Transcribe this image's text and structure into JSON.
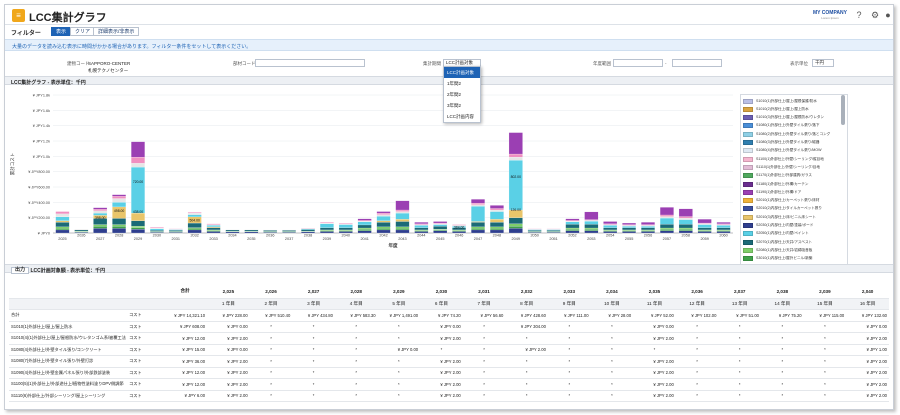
{
  "app": {
    "title": "LCC集計グラフ",
    "company": "MY COMPANY",
    "company_sub": "Lorem Ipsum"
  },
  "filter": {
    "label": "フィルター",
    "tabs": [
      "表示",
      "クリア",
      "詳細表示/非表示"
    ]
  },
  "info_message": "大量のデータを読み込む表示に時間がかかる場合があります。フィルター条件をセットして表示ください。",
  "form": {
    "building_code_label": "建物コード",
    "building_code_value": "SAPPORO-CENTER",
    "building_name_value": "札幌テクノセンター",
    "part_code_label": "部材コード",
    "period_label": "集計期間",
    "period_value": "LCC計画対象",
    "year_range_label": "年度範囲",
    "range_sep": "-",
    "unit_label": "表示単位",
    "unit_value": "千円",
    "period_options": [
      "LCC計画対象",
      "1年間2",
      "2年間2",
      "3年間2",
      "LCC計画内容"
    ]
  },
  "chart_section": {
    "title": "LCC集計グラフ - 表示単位：千円"
  },
  "table_section": {
    "title": "集計表 - LCC計画対象額 - 表示単位：千円",
    "output_button": "出力"
  },
  "colors": {
    "primary": "#1e63b5",
    "info_bg": "#e6f0fb",
    "accent": "#f0a71b"
  },
  "chart_data": {
    "type": "bar",
    "stacked": true,
    "ylabel": "累計コスト",
    "xlabel": "年度",
    "ylim": [
      0,
      1800000
    ],
    "yticks": [
      "¥ JPY0",
      "¥ JPY200.00",
      "¥ JPY400.00",
      "¥ JPY600.00",
      "¥ JPY800.00",
      "¥ JPY1.0k",
      "¥ JPY1.2k",
      "¥ JPY1.4k",
      "¥ JPY1.6k",
      "¥ JPY1.8k"
    ],
    "categories": [
      "2025",
      "2026",
      "2027",
      "2028",
      "2029",
      "2030",
      "2031",
      "2032",
      "2033",
      "2034",
      "2035",
      "2036",
      "2037",
      "2038",
      "2039",
      "2040",
      "2041",
      "2042",
      "2043",
      "2044",
      "2045",
      "2046",
      "2047",
      "2048",
      "2049",
      "2050",
      "2051",
      "2052",
      "2053",
      "2054",
      "2055",
      "2056",
      "2057",
      "2058",
      "2059",
      "2060"
    ],
    "xtick_labels": [
      "2025",
      "",
      "2027",
      "",
      "2029",
      "",
      "2031",
      "",
      "2033",
      "",
      "2035",
      "",
      "2037",
      "",
      "2039",
      "",
      "2041",
      "",
      "2043",
      "",
      "2045",
      "",
      "2047",
      "",
      "2049",
      "",
      "2051",
      "",
      "2053",
      "",
      "2055",
      "",
      "2057",
      "",
      "2059",
      ""
    ],
    "xtick_labels_b": [
      "",
      "2026",
      "",
      "2028",
      "",
      "2030",
      "",
      "2032",
      "",
      "2034",
      "",
      "2036",
      "",
      "2038",
      "",
      "2040",
      "",
      "2042",
      "",
      "2044",
      "",
      "2046",
      "",
      "2048",
      "",
      "2050",
      "",
      "2052",
      "",
      "2054",
      "",
      "2056",
      "",
      "2058",
      "",
      "2060"
    ],
    "series": [
      {
        "color": "#2f3f8f",
        "values": [
          40000,
          10000,
          60000,
          60000,
          50000,
          10000,
          10000,
          40000,
          20000,
          15000,
          15000,
          10000,
          10000,
          15000,
          20000,
          20000,
          30000,
          40000,
          40000,
          20000,
          30000,
          20000,
          40000,
          40000,
          60000,
          10000,
          10000,
          30000,
          30000,
          20000,
          20000,
          20000,
          30000,
          30000,
          20000,
          20000
        ]
      },
      {
        "color": "#3fa14a",
        "values": [
          20000,
          5000,
          30000,
          30000,
          20000,
          5000,
          5000,
          20000,
          10000,
          5000,
          5000,
          5000,
          5000,
          5000,
          10000,
          10000,
          20000,
          20000,
          20000,
          10000,
          10000,
          10000,
          20000,
          20000,
          30000,
          5000,
          5000,
          20000,
          20000,
          10000,
          10000,
          10000,
          20000,
          20000,
          10000,
          10000
        ]
      },
      {
        "color": "#7fcf6a",
        "values": [
          20000,
          10000,
          20000,
          20000,
          20000,
          5000,
          5000,
          10000,
          10000,
          5000,
          5000,
          5000,
          5000,
          5000,
          10000,
          10000,
          15000,
          20000,
          20000,
          10000,
          10000,
          10000,
          20000,
          20000,
          30000,
          5000,
          5000,
          15000,
          15000,
          10000,
          10000,
          10000,
          15000,
          15000,
          10000,
          10000
        ]
      },
      {
        "color": "#1b6a77",
        "values": [
          60000,
          15000,
          80000,
          80000,
          70000,
          15000,
          15000,
          60000,
          30000,
          15000,
          15000,
          15000,
          15000,
          20000,
          30000,
          30000,
          40000,
          60000,
          70000,
          30000,
          40000,
          30000,
          60000,
          60000,
          80000,
          15000,
          15000,
          50000,
          50000,
          30000,
          30000,
          30000,
          50000,
          50000,
          30000,
          30000
        ]
      },
      {
        "color": "#e9c56a",
        "values": [
          20000,
          0,
          40000,
          150000,
          100000,
          0,
          0,
          80000,
          10000,
          0,
          0,
          0,
          0,
          0,
          0,
          0,
          0,
          20000,
          30000,
          0,
          0,
          0,
          10000,
          40000,
          100000,
          0,
          0,
          0,
          0,
          0,
          0,
          0,
          0,
          0,
          0,
          0
        ]
      },
      {
        "color": "#5ad0e6",
        "values": [
          50000,
          0,
          30000,
          60000,
          600000,
          20000,
          10000,
          30000,
          20000,
          0,
          0,
          0,
          0,
          10000,
          50000,
          40000,
          40000,
          60000,
          80000,
          30000,
          20000,
          20000,
          200000,
          100000,
          650000,
          10000,
          10000,
          30000,
          40000,
          30000,
          20000,
          20000,
          80000,
          60000,
          40000,
          30000
        ]
      },
      {
        "color": "#e6e6e6",
        "values": [
          40000,
          10000,
          30000,
          50000,
          50000,
          10000,
          5000,
          20000,
          10000,
          5000,
          5000,
          5000,
          5000,
          5000,
          10000,
          10000,
          10000,
          20000,
          20000,
          10000,
          10000,
          10000,
          20000,
          20000,
          40000,
          5000,
          5000,
          10000,
          10000,
          10000,
          10000,
          10000,
          20000,
          20000,
          10000,
          10000
        ]
      },
      {
        "color": "#f08fc0",
        "values": [
          30000,
          0,
          20000,
          30000,
          80000,
          10000,
          5000,
          10000,
          10000,
          0,
          0,
          0,
          0,
          5000,
          10000,
          10000,
          10000,
          20000,
          20000,
          10000,
          10000,
          10000,
          20000,
          20000,
          40000,
          5000,
          5000,
          10000,
          10000,
          10000,
          10000,
          10000,
          20000,
          20000,
          10000,
          10000
        ]
      },
      {
        "color": "#9b3fb3",
        "values": [
          0,
          0,
          20000,
          20000,
          200000,
          0,
          0,
          0,
          0,
          0,
          0,
          0,
          0,
          0,
          0,
          0,
          20000,
          20000,
          120000,
          20000,
          20000,
          0,
          50000,
          40000,
          280000,
          0,
          0,
          20000,
          100000,
          30000,
          20000,
          30000,
          100000,
          100000,
          50000,
          20000
        ]
      }
    ],
    "annotations": [
      {
        "index": 2,
        "label": "398.00"
      },
      {
        "index": 3,
        "label": "498.00"
      },
      {
        "index": 4,
        "label": "720.00"
      },
      {
        "index": 4,
        "label": "438.00"
      },
      {
        "index": 7,
        "label": "504.00"
      },
      {
        "index": 21,
        "label": "384.00"
      },
      {
        "index": 24,
        "label": "802.00"
      },
      {
        "index": 24,
        "label": "126.00"
      }
    ],
    "legend": [
      {
        "label": "S1010(1)外部仕上/屋上/屋根保護/防水",
        "color": "#b9bfe6"
      },
      {
        "label": "S1010(2)外部仕上/屋上/屋上防水",
        "color": "#d9a441"
      },
      {
        "label": "S1010(3)外部仕上/屋上/屋根防水/ウレタン",
        "color": "#6b5fb3"
      },
      {
        "label": "S1080(1)外部仕上/外壁タイル張り/落下",
        "color": "#4a8fd8"
      },
      {
        "label": "S1080(2)外部仕上/外壁タイル張り/落とコング",
        "color": "#8fd0e6"
      },
      {
        "label": "S1080(3)外部仕上/外壁タイル張り/磁器",
        "color": "#2f7fb0"
      },
      {
        "label": "S1080(4)外部仕上/外壁タイル張り/MOW",
        "color": "#dfe9f3"
      },
      {
        "label": "S1100(1)外部仕上/外壁/シーリング/縦目地",
        "color": "#f5b6cf"
      },
      {
        "label": "S1110(1)外部仕上/外壁/シーリング/目地",
        "color": "#e2bcd6"
      },
      {
        "label": "S1170(1)外部仕上/外部建具/ガラス",
        "color": "#4fa95e"
      },
      {
        "label": "S1180(1)外部仕上/外構/カーテン",
        "color": "#6a2e8f"
      },
      {
        "label": "S1190(1)外部仕上/外構/ドア",
        "color": "#9b3fb3"
      },
      {
        "label": "S2010(1)内部仕上/カーペット張り/床材",
        "color": "#f0b33a"
      },
      {
        "label": "S2010(2)内部仕上/タイルカーペット張り",
        "color": "#3a4f9e"
      },
      {
        "label": "S2010(3)内部仕上/床/ビニル床シート",
        "color": "#e9c56a"
      },
      {
        "label": "S2030(1)内部仕上/内壁/塗装/ボード",
        "color": "#2f3f8f"
      },
      {
        "label": "S2050(1)内部仕上/内壁/ペイント",
        "color": "#5ad0e6"
      },
      {
        "label": "S2070(1)内部仕上/天井/アスベスト",
        "color": "#1b6a77"
      },
      {
        "label": "S2080(1)内部仕上/天井/岩綿吸音板",
        "color": "#7fcf6a"
      },
      {
        "label": "S3010(1)内部仕上/屋外ビニル/新築",
        "color": "#3fa14a"
      },
      {
        "label": "S3030(1)内部建具/木製/扉",
        "color": "#2e8f8a"
      },
      {
        "label": "S3040(1)外構/舗装/アスファルト",
        "color": "#f08fc0"
      }
    ]
  },
  "table": {
    "total_label": "合計",
    "years": [
      "2,025",
      "2,026",
      "2,027",
      "2,028",
      "2,029",
      "2,030",
      "2,031",
      "2,032",
      "2,033",
      "2,034",
      "2,035",
      "2,036",
      "2,037",
      "2,038",
      "2,039",
      "2,040"
    ],
    "year_nums": [
      "1 年目",
      "2 年目",
      "3 年目",
      "4 年目",
      "5 年目",
      "6 年目",
      "7 年目",
      "8 年目",
      "9 年目",
      "10 年目",
      "11 年目",
      "12 年目",
      "13 年目",
      "14 年目",
      "15 年目",
      "16 年目"
    ],
    "rows": [
      {
        "name": "合計",
        "kind": "コスト",
        "total": "¥ JPY 14,321.10",
        "cells": [
          "¥ JPY 228.00",
          "¥ JPY 510.40",
          "¥ JPY 434.80",
          "¥ JPY 583.30",
          "¥ JPY 1,491.00",
          "¥ JPY 74.20",
          "¥ JPY 56.60",
          "¥ JPY 428.60",
          "¥ JPY 111.00",
          "¥ JPY 28.00",
          "¥ JPY 52.00",
          "¥ JPY 102.00",
          "¥ JPY 51.00",
          "¥ JPY 75.20",
          "¥ JPY 115.00",
          "¥ JPY 132.60"
        ]
      },
      {
        "name": "S1010(1)外部仕上/屋上/屋上防水",
        "kind": "コスト",
        "total": "¥ JPY 608.00",
        "cells": [
          "¥ JPY 0.00",
          "*",
          "*",
          "*",
          "*",
          "¥ JPY 0.00",
          "*",
          "¥ JPY 304.00",
          "*",
          "*",
          "¥ JPY 0.00",
          "*",
          "*",
          "*",
          "*",
          "¥ JPY 0.00"
        ]
      },
      {
        "name": "S1010(4)(1)外部仕上/屋上/屋根防水/ウレタンゴム系/被覆工法",
        "kind": "コスト",
        "total": "¥ JPY 12.00",
        "cells": [
          "¥ JPY 2.00",
          "*",
          "*",
          "*",
          "*",
          "¥ JPY 2.00",
          "*",
          "*",
          "*",
          "*",
          "¥ JPY 2.00",
          "*",
          "*",
          "*",
          "*",
          "¥ JPY 2.00"
        ]
      },
      {
        "name": "S1080(4)外部仕上/外壁タイル張り/コンクリート",
        "kind": "コスト",
        "total": "¥ JPY 15.00",
        "cells": [
          "¥ JPY 0.00",
          "*",
          "*",
          "*",
          "¥ JPY 0.00",
          "*",
          "*",
          "¥ JPY 2.00",
          "*",
          "*",
          "*",
          "*",
          "*",
          "*",
          "*",
          "¥ JPY 1.00"
        ]
      },
      {
        "name": "S1080(7)外部仕上/外壁タイル張り/外壁打診",
        "kind": "コスト",
        "total": "¥ JPY 36.00",
        "cells": [
          "¥ JPY 2.00",
          "*",
          "*",
          "*",
          "*",
          "¥ JPY 2.00",
          "*",
          "*",
          "*",
          "*",
          "¥ JPY 2.00",
          "*",
          "*",
          "*",
          "*",
          "¥ JPY 2.00"
        ]
      },
      {
        "name": "S1090(4)外部仕上/外壁金属パネル張り/外部鉄部塗装",
        "kind": "コスト",
        "total": "¥ JPY 12.00",
        "cells": [
          "¥ JPY 2.00",
          "*",
          "*",
          "*",
          "*",
          "¥ JPY 2.00",
          "*",
          "*",
          "*",
          "*",
          "¥ JPY 2.00",
          "*",
          "*",
          "*",
          "*",
          "¥ JPY 2.00"
        ]
      },
      {
        "name": "S1100(5)(1)外部仕上/外部途仕上/植物性塗料塗りDPV側調節",
        "kind": "コスト",
        "total": "¥ JPY 12.00",
        "cells": [
          "¥ JPY 2.00",
          "*",
          "*",
          "*",
          "*",
          "¥ JPY 2.00",
          "*",
          "*",
          "*",
          "*",
          "¥ JPY 2.00",
          "*",
          "*",
          "*",
          "*",
          "¥ JPY 2.00"
        ]
      },
      {
        "name": "S1110(6)外部仕上/外部シーリング/屋上シーリング",
        "kind": "コスト",
        "total": "¥ JPY 6.00",
        "cells": [
          "¥ JPY 2.00",
          "*",
          "*",
          "*",
          "*",
          "¥ JPY 2.00",
          "*",
          "*",
          "*",
          "*",
          "¥ JPY 2.00",
          "*",
          "*",
          "*",
          "*",
          "¥ JPY 2.00"
        ]
      }
    ]
  }
}
